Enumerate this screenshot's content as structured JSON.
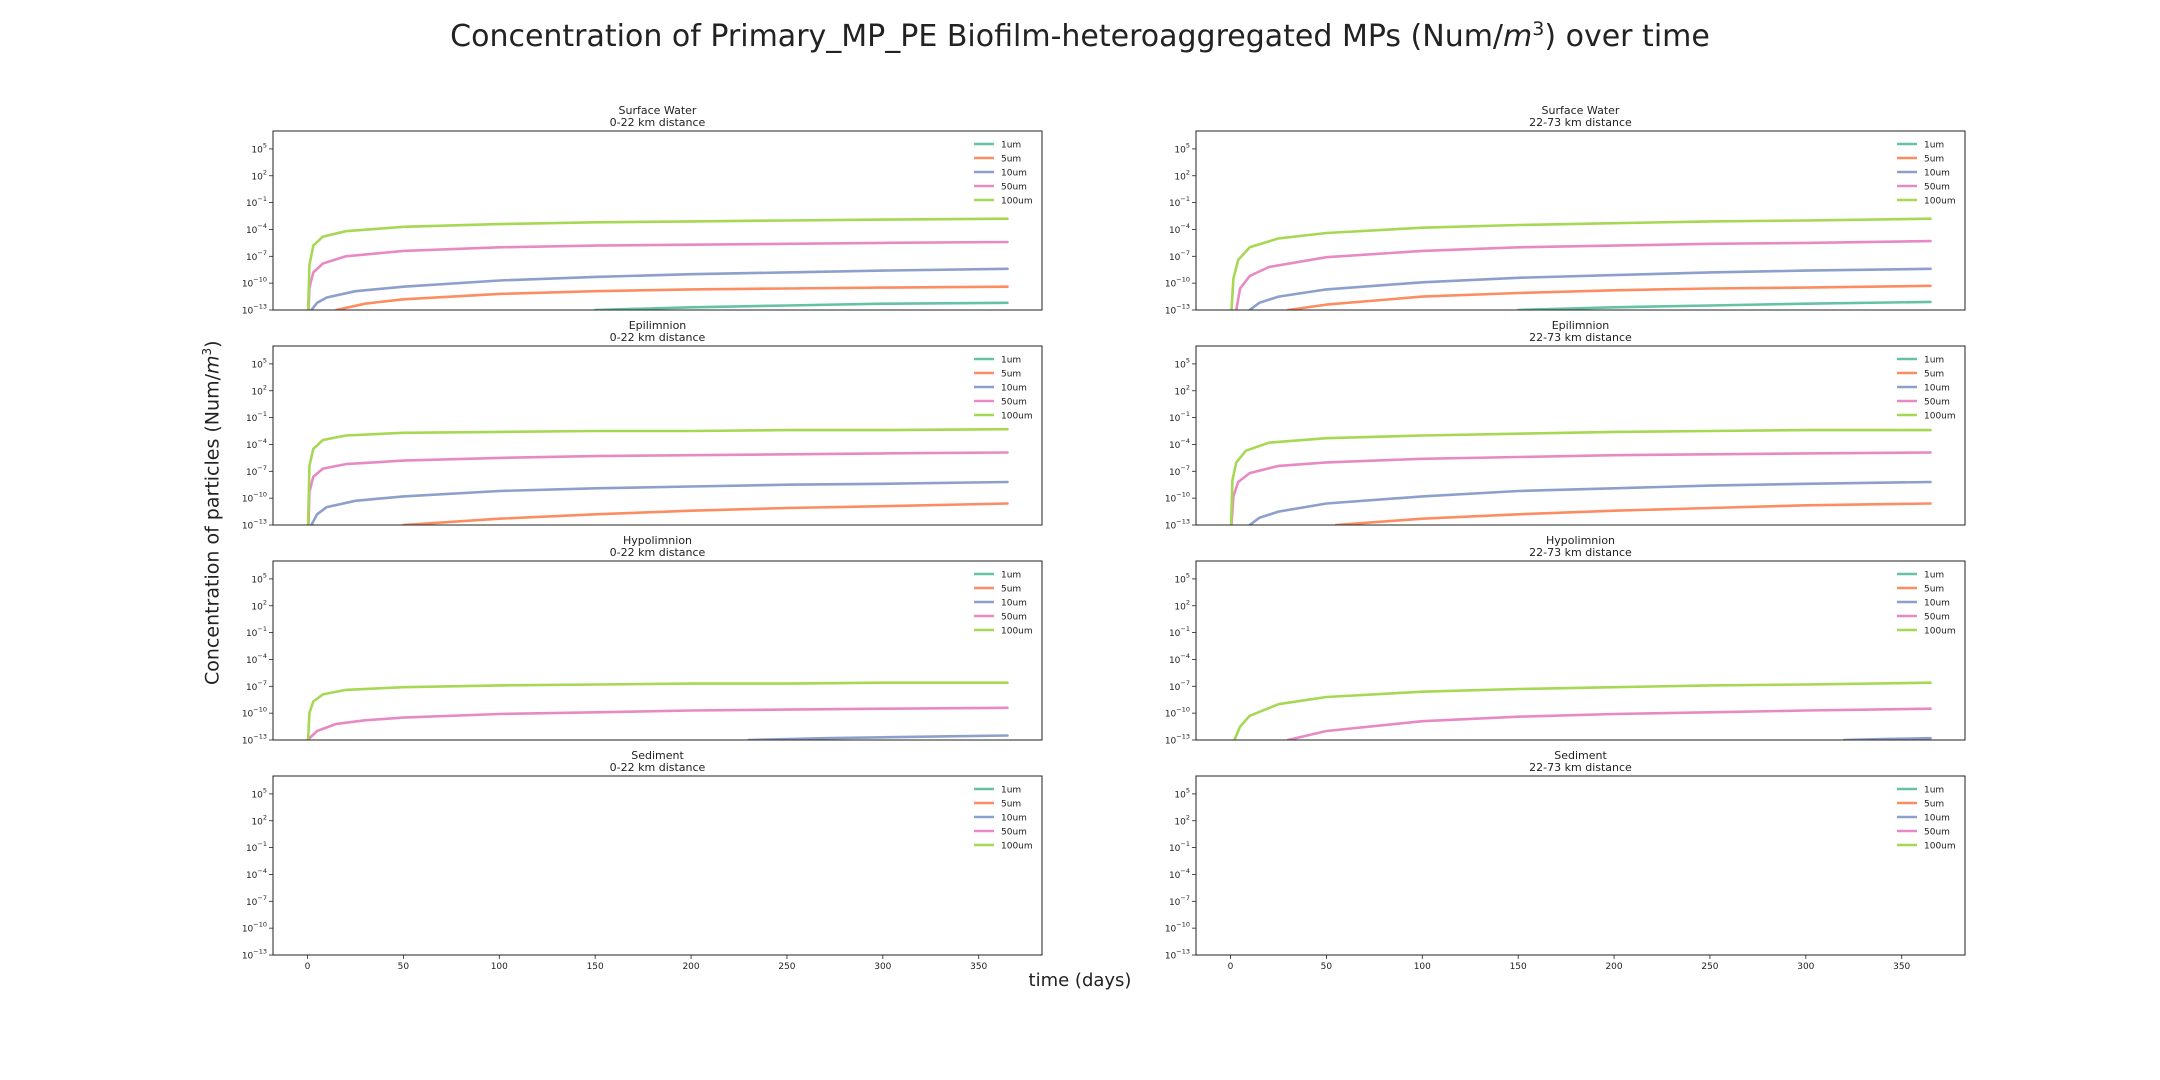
{
  "title": {
    "prefix": "Concentration of Primary_MP_PE Biofilm-heteroaggregated MPs (Num/",
    "unit_base": "m",
    "unit_exp": "3",
    "suffix": ") over time"
  },
  "ylabel": {
    "prefix": "Concentration of particles (Num/",
    "unit_base": "m",
    "unit_exp": "3",
    "suffix": ")"
  },
  "xlabel": "time (days)",
  "colors": {
    "1um": "#66c2a5",
    "5um": "#fc8d62",
    "10um": "#8da0cb",
    "50um": "#e78ac3",
    "100um": "#a6d854"
  },
  "chart_data": [
    {
      "type": "line",
      "title": "Surface Water",
      "subtitle": "0-22 km distance",
      "xlim": [
        -18,
        383
      ],
      "ylim_exp": [
        -13,
        7
      ],
      "yscale": "log",
      "legend": "top-right",
      "grid": false,
      "xticks": [
        0,
        50,
        100,
        150,
        200,
        250,
        300,
        350
      ],
      "yticks_exp": [
        -13,
        -10,
        -7,
        -4,
        -1,
        2,
        5
      ],
      "series": [
        {
          "name": "1um",
          "x": [
            0,
            50,
            100,
            150,
            200,
            250,
            300,
            365
          ],
          "y_exp": [
            null,
            null,
            null,
            -13.0,
            -12.7,
            -12.5,
            -12.3,
            -12.2
          ]
        },
        {
          "name": "5um",
          "x": [
            15,
            30,
            50,
            100,
            150,
            200,
            250,
            300,
            365
          ],
          "y_exp": [
            -13.0,
            -12.3,
            -11.8,
            -11.2,
            -10.9,
            -10.7,
            -10.6,
            -10.5,
            -10.4
          ]
        },
        {
          "name": "10um",
          "x": [
            2,
            5,
            10,
            25,
            50,
            100,
            150,
            200,
            250,
            300,
            365
          ],
          "y_exp": [
            -13.0,
            -12.2,
            -11.6,
            -10.9,
            -10.4,
            -9.7,
            -9.3,
            -9.0,
            -8.8,
            -8.6,
            -8.4
          ]
        },
        {
          "name": "50um",
          "x": [
            0.5,
            1,
            3,
            8,
            20,
            50,
            100,
            150,
            200,
            250,
            300,
            365
          ],
          "y_exp": [
            -13.0,
            -10.5,
            -8.8,
            -7.8,
            -7.0,
            -6.4,
            -6.0,
            -5.8,
            -5.7,
            -5.6,
            -5.5,
            -5.4
          ]
        },
        {
          "name": "100um",
          "x": [
            0.3,
            1,
            3,
            8,
            20,
            50,
            100,
            150,
            200,
            250,
            300,
            365
          ],
          "y_exp": [
            -13.0,
            -8.0,
            -5.8,
            -4.8,
            -4.2,
            -3.7,
            -3.4,
            -3.2,
            -3.1,
            -3.0,
            -2.9,
            -2.8
          ]
        }
      ]
    },
    {
      "type": "line",
      "title": "Surface Water",
      "subtitle": "22-73 km distance",
      "xlim": [
        -18,
        383
      ],
      "ylim_exp": [
        -13,
        7
      ],
      "yscale": "log",
      "legend": "top-right",
      "grid": false,
      "xticks": [
        0,
        50,
        100,
        150,
        200,
        250,
        300,
        350
      ],
      "yticks_exp": [
        -13,
        -10,
        -7,
        -4,
        -1,
        2,
        5
      ],
      "series": [
        {
          "name": "1um",
          "x": [
            0,
            50,
            100,
            150,
            200,
            250,
            300,
            365
          ],
          "y_exp": [
            null,
            null,
            null,
            -13.0,
            -12.7,
            -12.5,
            -12.3,
            -12.1
          ]
        },
        {
          "name": "5um",
          "x": [
            30,
            50,
            100,
            150,
            200,
            250,
            300,
            365
          ],
          "y_exp": [
            -13.0,
            -12.4,
            -11.5,
            -11.1,
            -10.8,
            -10.6,
            -10.5,
            -10.3
          ]
        },
        {
          "name": "10um",
          "x": [
            10,
            15,
            25,
            50,
            100,
            150,
            200,
            250,
            300,
            365
          ],
          "y_exp": [
            -13.0,
            -12.2,
            -11.5,
            -10.7,
            -9.9,
            -9.4,
            -9.1,
            -8.8,
            -8.6,
            -8.4
          ]
        },
        {
          "name": "50um",
          "x": [
            3,
            5,
            10,
            20,
            50,
            100,
            150,
            200,
            250,
            300,
            365
          ],
          "y_exp": [
            -13.0,
            -10.6,
            -9.2,
            -8.2,
            -7.1,
            -6.4,
            -6.0,
            -5.8,
            -5.6,
            -5.5,
            -5.3
          ]
        },
        {
          "name": "100um",
          "x": [
            0.5,
            1.5,
            4,
            10,
            25,
            50,
            100,
            150,
            200,
            250,
            300,
            365
          ],
          "y_exp": [
            -13.0,
            -9.5,
            -7.4,
            -6.0,
            -5.0,
            -4.4,
            -3.8,
            -3.5,
            -3.3,
            -3.1,
            -3.0,
            -2.8
          ]
        }
      ]
    },
    {
      "type": "line",
      "title": "Epilimnion",
      "subtitle": "0-22 km distance",
      "xlim": [
        -18,
        383
      ],
      "ylim_exp": [
        -13,
        7
      ],
      "yscale": "log",
      "legend": "top-right",
      "grid": false,
      "xticks": [
        0,
        50,
        100,
        150,
        200,
        250,
        300,
        350
      ],
      "yticks_exp": [
        -13,
        -10,
        -7,
        -4,
        -1,
        2,
        5
      ],
      "series": [
        {
          "name": "1um",
          "x": [],
          "y_exp": []
        },
        {
          "name": "5um",
          "x": [
            50,
            100,
            150,
            200,
            250,
            300,
            365
          ],
          "y_exp": [
            -13.0,
            -12.3,
            -11.8,
            -11.4,
            -11.1,
            -10.9,
            -10.6
          ]
        },
        {
          "name": "10um",
          "x": [
            2,
            5,
            10,
            25,
            50,
            100,
            150,
            200,
            250,
            300,
            365
          ],
          "y_exp": [
            -13.0,
            -11.8,
            -11.0,
            -10.3,
            -9.8,
            -9.2,
            -8.9,
            -8.7,
            -8.5,
            -8.4,
            -8.2
          ]
        },
        {
          "name": "50um",
          "x": [
            0.5,
            1,
            3,
            8,
            20,
            50,
            100,
            150,
            200,
            250,
            300,
            365
          ],
          "y_exp": [
            -13.0,
            -9.3,
            -7.6,
            -6.7,
            -6.2,
            -5.8,
            -5.5,
            -5.3,
            -5.2,
            -5.1,
            -5.0,
            -4.9
          ]
        },
        {
          "name": "100um",
          "x": [
            0.3,
            1,
            3,
            8,
            20,
            50,
            100,
            150,
            200,
            250,
            300,
            365
          ],
          "y_exp": [
            -13.0,
            -6.4,
            -4.5,
            -3.5,
            -3.0,
            -2.7,
            -2.6,
            -2.5,
            -2.5,
            -2.4,
            -2.4,
            -2.3
          ]
        }
      ]
    },
    {
      "type": "line",
      "title": "Epilimnion",
      "subtitle": "22-73 km distance",
      "xlim": [
        -18,
        383
      ],
      "ylim_exp": [
        -13,
        7
      ],
      "yscale": "log",
      "legend": "top-right",
      "grid": false,
      "xticks": [
        0,
        50,
        100,
        150,
        200,
        250,
        300,
        350
      ],
      "yticks_exp": [
        -13,
        -10,
        -7,
        -4,
        -1,
        2,
        5
      ],
      "series": [
        {
          "name": "1um",
          "x": [],
          "y_exp": []
        },
        {
          "name": "5um",
          "x": [
            55,
            100,
            150,
            200,
            250,
            300,
            365
          ],
          "y_exp": [
            -13.0,
            -12.3,
            -11.8,
            -11.4,
            -11.1,
            -10.8,
            -10.6
          ]
        },
        {
          "name": "10um",
          "x": [
            10,
            15,
            25,
            50,
            100,
            150,
            200,
            250,
            300,
            365
          ],
          "y_exp": [
            -13.0,
            -12.2,
            -11.5,
            -10.6,
            -9.8,
            -9.2,
            -8.9,
            -8.6,
            -8.4,
            -8.2
          ]
        },
        {
          "name": "50um",
          "x": [
            0.5,
            1.5,
            4,
            10,
            25,
            50,
            100,
            150,
            200,
            250,
            300,
            365
          ],
          "y_exp": [
            -13.0,
            -9.8,
            -8.2,
            -7.2,
            -6.4,
            -6.0,
            -5.6,
            -5.4,
            -5.2,
            -5.1,
            -5.0,
            -4.9
          ]
        },
        {
          "name": "100um",
          "x": [
            0.3,
            1,
            3,
            8,
            20,
            50,
            100,
            150,
            200,
            250,
            300,
            365
          ],
          "y_exp": [
            -13.0,
            -8.0,
            -6.0,
            -4.7,
            -3.8,
            -3.3,
            -3.0,
            -2.8,
            -2.6,
            -2.5,
            -2.4,
            -2.4
          ]
        }
      ]
    },
    {
      "type": "line",
      "title": "Hypolimnion",
      "subtitle": "0-22 km distance",
      "xlim": [
        -18,
        383
      ],
      "ylim_exp": [
        -13,
        7
      ],
      "yscale": "log",
      "legend": "top-right",
      "grid": false,
      "xticks": [
        0,
        50,
        100,
        150,
        200,
        250,
        300,
        350
      ],
      "yticks_exp": [
        -13,
        -10,
        -7,
        -4,
        -1,
        2,
        5
      ],
      "series": [
        {
          "name": "1um",
          "x": [],
          "y_exp": []
        },
        {
          "name": "5um",
          "x": [],
          "y_exp": []
        },
        {
          "name": "10um",
          "x": [
            230,
            270,
            300,
            330,
            365
          ],
          "y_exp": [
            -13.0,
            -12.8,
            -12.7,
            -12.6,
            -12.5
          ]
        },
        {
          "name": "50um",
          "x": [
            0,
            5,
            15,
            30,
            50,
            100,
            150,
            200,
            250,
            300,
            365
          ],
          "y_exp": [
            -13.0,
            -12.0,
            -11.2,
            -10.8,
            -10.5,
            -10.1,
            -9.9,
            -9.7,
            -9.6,
            -9.5,
            -9.4
          ]
        },
        {
          "name": "100um",
          "x": [
            0.3,
            1,
            3,
            8,
            20,
            50,
            100,
            150,
            200,
            250,
            300,
            365
          ],
          "y_exp": [
            -13.0,
            -10.0,
            -8.7,
            -7.9,
            -7.4,
            -7.1,
            -6.9,
            -6.8,
            -6.7,
            -6.7,
            -6.6,
            -6.6
          ]
        }
      ]
    },
    {
      "type": "line",
      "title": "Hypolimnion",
      "subtitle": "22-73 km distance",
      "xlim": [
        -18,
        383
      ],
      "ylim_exp": [
        -13,
        7
      ],
      "yscale": "log",
      "legend": "top-right",
      "grid": false,
      "xticks": [
        0,
        50,
        100,
        150,
        200,
        250,
        300,
        350
      ],
      "yticks_exp": [
        -13,
        -10,
        -7,
        -4,
        -1,
        2,
        5
      ],
      "series": [
        {
          "name": "1um",
          "x": [],
          "y_exp": []
        },
        {
          "name": "5um",
          "x": [],
          "y_exp": []
        },
        {
          "name": "10um",
          "x": [
            320,
            340,
            365
          ],
          "y_exp": [
            -13.0,
            -12.9,
            -12.8
          ]
        },
        {
          "name": "50um",
          "x": [
            30,
            50,
            100,
            150,
            200,
            250,
            300,
            365
          ],
          "y_exp": [
            -13.0,
            -12.0,
            -10.9,
            -10.4,
            -10.1,
            -9.9,
            -9.7,
            -9.5
          ]
        },
        {
          "name": "100um",
          "x": [
            2,
            5,
            10,
            25,
            50,
            100,
            150,
            200,
            250,
            300,
            365
          ],
          "y_exp": [
            -13.0,
            -11.5,
            -10.3,
            -9.0,
            -8.2,
            -7.6,
            -7.3,
            -7.1,
            -6.9,
            -6.8,
            -6.6
          ]
        }
      ]
    },
    {
      "type": "line",
      "title": "Sediment",
      "subtitle": "0-22 km distance",
      "xlim": [
        -18,
        383
      ],
      "ylim_exp": [
        -13,
        7
      ],
      "yscale": "log",
      "legend": "top-right",
      "grid": false,
      "xticks": [
        0,
        50,
        100,
        150,
        200,
        250,
        300,
        350
      ],
      "yticks_exp": [
        -13,
        -10,
        -7,
        -4,
        -1,
        2,
        5
      ],
      "series": [
        {
          "name": "1um",
          "x": [],
          "y_exp": []
        },
        {
          "name": "5um",
          "x": [],
          "y_exp": []
        },
        {
          "name": "10um",
          "x": [],
          "y_exp": []
        },
        {
          "name": "50um",
          "x": [],
          "y_exp": []
        },
        {
          "name": "100um",
          "x": [],
          "y_exp": []
        }
      ]
    },
    {
      "type": "line",
      "title": "Sediment",
      "subtitle": "22-73 km distance",
      "xlim": [
        -18,
        383
      ],
      "ylim_exp": [
        -13,
        7
      ],
      "yscale": "log",
      "legend": "top-right",
      "grid": false,
      "xticks": [
        0,
        50,
        100,
        150,
        200,
        250,
        300,
        350
      ],
      "yticks_exp": [
        -13,
        -10,
        -7,
        -4,
        -1,
        2,
        5
      ],
      "series": [
        {
          "name": "1um",
          "x": [],
          "y_exp": []
        },
        {
          "name": "5um",
          "x": [],
          "y_exp": []
        },
        {
          "name": "10um",
          "x": [],
          "y_exp": []
        },
        {
          "name": "50um",
          "x": [],
          "y_exp": []
        },
        {
          "name": "100um",
          "x": [],
          "y_exp": []
        }
      ]
    }
  ]
}
